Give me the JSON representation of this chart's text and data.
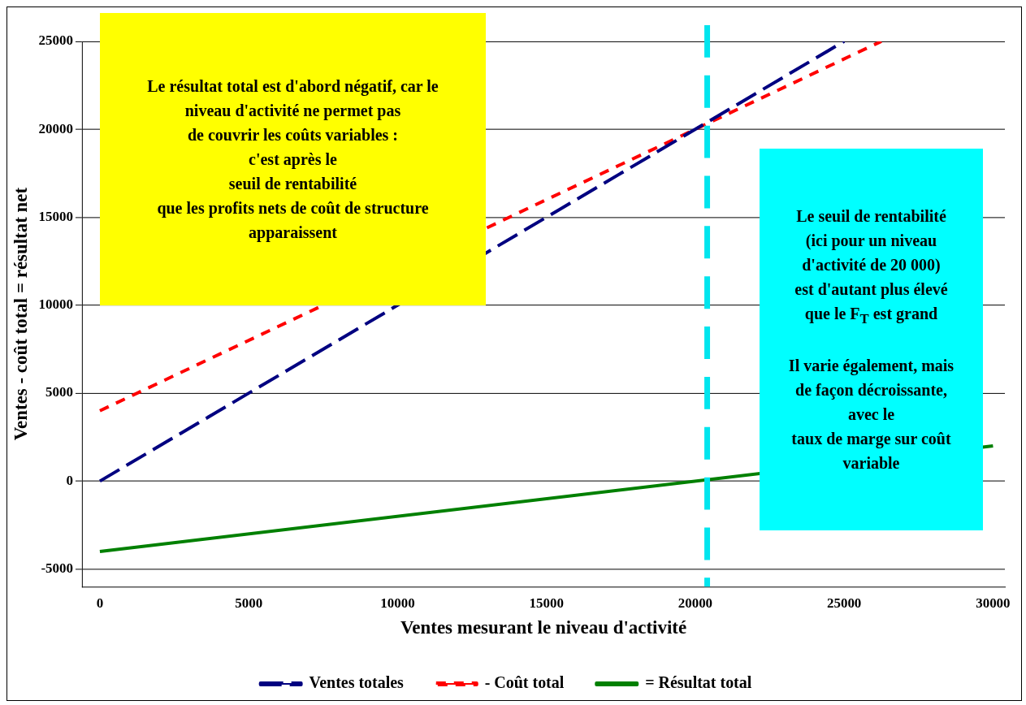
{
  "chart_data": {
    "type": "line",
    "xlabel": "Ventes mesurant le niveau d'activité",
    "ylabel": "Ventes - coût total = résultat net",
    "xlim": [
      -600,
      30400
    ],
    "ylim": [
      -6000,
      25000
    ],
    "xticks": [
      0,
      5000,
      10000,
      15000,
      20000,
      25000,
      30000
    ],
    "yticks": [
      -5000,
      0,
      5000,
      10000,
      15000,
      20000,
      25000
    ],
    "grid": "y",
    "legend": "bottom",
    "series": [
      {
        "name": "Ventes totales",
        "color": "#000080",
        "line_style": "dashed",
        "x": [
          0,
          25000
        ],
        "values": [
          0,
          25000
        ]
      },
      {
        "name": "- Coût total",
        "color": "#ff0000",
        "line_style": "dotted",
        "x": [
          0,
          26250
        ],
        "values": [
          4000,
          25000
        ]
      },
      {
        "name": "= Résultat total",
        "color": "#008000",
        "line_style": "solid",
        "x": [
          0,
          30000
        ],
        "values": [
          -4000,
          2000
        ]
      }
    ],
    "ref_lines": [
      {
        "axis": "x",
        "value": 20400,
        "color": "#00e5ee",
        "line_style": "dashed"
      }
    ],
    "annotations": [
      "Le résultat total est d'abord négatif, car le\nniveau d'activité ne permet pas\nde couvrir les coûts variables :\nc'est après le\nseuil de rentabilité\nque les profits nets de coût de structure\napparaissent",
      "Le seuil de rentabilité\n(ici pour un niveau\nd'activité de 20 000)\nest d'autant plus élevé\nque le F$_{T}$ est grand\n\nIl varie également, mais\nde façon décroissante,\navec le\ntaux de marge sur coût\nvariable"
    ]
  }
}
